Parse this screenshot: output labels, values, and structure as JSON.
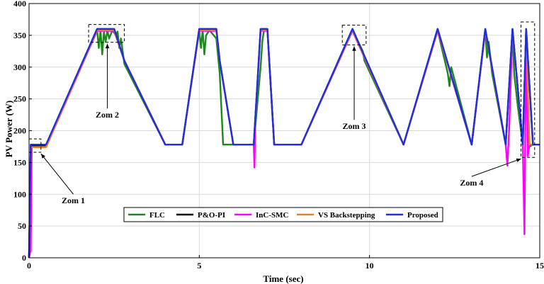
{
  "chart_data": {
    "type": "line",
    "xlabel": "Time (sec)",
    "ylabel": "PV Power (W)",
    "xlim": [
      0,
      15
    ],
    "ylim": [
      0,
      400
    ],
    "x_ticks": [
      0,
      5,
      10,
      15
    ],
    "y_ticks": [
      0,
      50,
      100,
      150,
      200,
      250,
      300,
      350,
      400
    ],
    "grid": true,
    "legend_position": "bottom-center",
    "series": [
      {
        "name": "FLC",
        "color": "#1a8a1a",
        "x": [
          0,
          0.05,
          0.08,
          0.5,
          2.0,
          2.05,
          2.1,
          2.15,
          2.2,
          2.25,
          2.3,
          2.35,
          2.45,
          2.55,
          2.6,
          2.65,
          2.7,
          2.8,
          4.0,
          4.5,
          5.0,
          5.05,
          5.1,
          5.15,
          5.2,
          5.3,
          5.5,
          5.6,
          5.7,
          6.0,
          6.6,
          6.8,
          6.85,
          6.9,
          7.0,
          7.2,
          8.0,
          9.5,
          9.8,
          9.85,
          11.0,
          12.0,
          12.1,
          12.3,
          12.35,
          12.4,
          13.0,
          13.4,
          13.45,
          13.5,
          13.6,
          14.0,
          14.2,
          14.25,
          14.35,
          14.5,
          14.6,
          14.65,
          14.7,
          14.8,
          15.0
        ],
        "y": [
          0,
          176,
          176,
          176,
          358,
          330,
          358,
          320,
          355,
          340,
          358,
          345,
          358,
          350,
          356,
          330,
          345,
          305,
          178,
          178,
          358,
          330,
          358,
          320,
          350,
          358,
          345,
          290,
          178,
          178,
          178,
          300,
          340,
          358,
          358,
          178,
          178,
          358,
          325,
          310,
          178,
          358,
          335,
          290,
          270,
          300,
          178,
          358,
          315,
          340,
          290,
          178,
          358,
          290,
          240,
          178,
          358,
          220,
          175,
          178,
          178
        ]
      },
      {
        "name": "P&O-PI",
        "color": "#000000",
        "x": [
          0,
          0.05,
          0.5,
          2.0,
          2.5,
          2.8,
          4.0,
          4.5,
          5.0,
          5.5,
          5.6,
          6.0,
          6.6,
          6.8,
          7.0,
          7.2,
          8.0,
          9.5,
          11.0,
          12.0,
          13.0,
          13.4,
          14.0,
          14.2,
          14.5,
          14.6,
          14.8,
          15.0
        ],
        "y": [
          0,
          177,
          177,
          360,
          360,
          310,
          178,
          178,
          360,
          360,
          310,
          178,
          178,
          360,
          360,
          178,
          178,
          360,
          178,
          360,
          178,
          360,
          178,
          360,
          178,
          360,
          178,
          178
        ]
      },
      {
        "name": "InC-SMC",
        "color": "#ff00ff",
        "x": [
          0,
          0.04,
          0.05,
          0.08,
          0.5,
          2.0,
          2.5,
          2.8,
          4.0,
          4.5,
          5.0,
          5.5,
          5.6,
          6.0,
          6.6,
          6.62,
          6.65,
          6.8,
          7.0,
          7.2,
          8.0,
          9.5,
          11.0,
          12.0,
          13.0,
          13.4,
          14.0,
          14.05,
          14.1,
          14.2,
          14.5,
          14.55,
          14.6,
          14.65,
          14.7,
          14.8,
          15.0
        ],
        "y": [
          0,
          10,
          10,
          174,
          174,
          357,
          357,
          310,
          178,
          178,
          357,
          357,
          310,
          178,
          178,
          142,
          220,
          357,
          357,
          178,
          178,
          357,
          178,
          357,
          178,
          357,
          178,
          145,
          200,
          357,
          178,
          37,
          357,
          160,
          178,
          178,
          178
        ]
      },
      {
        "name": "VS Backstepping",
        "color": "#e8821a",
        "x": [
          0,
          0.05,
          0.5,
          2.0,
          2.5,
          2.8,
          4.0,
          4.5,
          5.0,
          5.5,
          5.6,
          6.0,
          6.6,
          6.8,
          7.0,
          7.2,
          8.0,
          9.5,
          11.0,
          12.0,
          13.0,
          13.4,
          14.0,
          14.2,
          14.5,
          14.6,
          14.7,
          15.0
        ],
        "y": [
          0,
          174,
          174,
          358,
          358,
          310,
          178,
          178,
          358,
          358,
          310,
          178,
          178,
          358,
          358,
          178,
          178,
          358,
          178,
          358,
          178,
          358,
          178,
          358,
          178,
          358,
          178,
          178
        ]
      },
      {
        "name": "Proposed",
        "color": "#1f2fe0",
        "x": [
          0,
          0.05,
          0.5,
          2.0,
          2.5,
          2.8,
          4.0,
          4.5,
          5.0,
          5.5,
          5.6,
          6.0,
          6.6,
          6.8,
          7.0,
          7.2,
          8.0,
          9.5,
          11.0,
          12.0,
          13.0,
          13.4,
          14.0,
          14.2,
          14.5,
          14.6,
          14.8,
          15.0
        ],
        "y": [
          0,
          178,
          178,
          360,
          360,
          310,
          178,
          178,
          360,
          360,
          310,
          178,
          178,
          360,
          360,
          178,
          178,
          360,
          178,
          360,
          178,
          360,
          178,
          360,
          178,
          360,
          178,
          178
        ]
      }
    ],
    "zoom_annotations": [
      {
        "label": "Zom 1",
        "x_range": [
          0,
          0.35
        ],
        "y_range": [
          166,
          187
        ],
        "label_at": [
          1.3,
          90
        ]
      },
      {
        "label": "Zom 2",
        "x_range": [
          1.75,
          2.8
        ],
        "y_range": [
          339,
          367
        ],
        "label_at": [
          2.3,
          225
        ]
      },
      {
        "label": "Zom 3",
        "x_range": [
          9.2,
          9.9
        ],
        "y_range": [
          335,
          366
        ],
        "label_at": [
          9.55,
          207
        ]
      },
      {
        "label": "Zom 4",
        "x_range": [
          14.45,
          14.85
        ],
        "y_range": [
          158,
          371
        ],
        "label_at": [
          13.0,
          118
        ]
      }
    ]
  }
}
